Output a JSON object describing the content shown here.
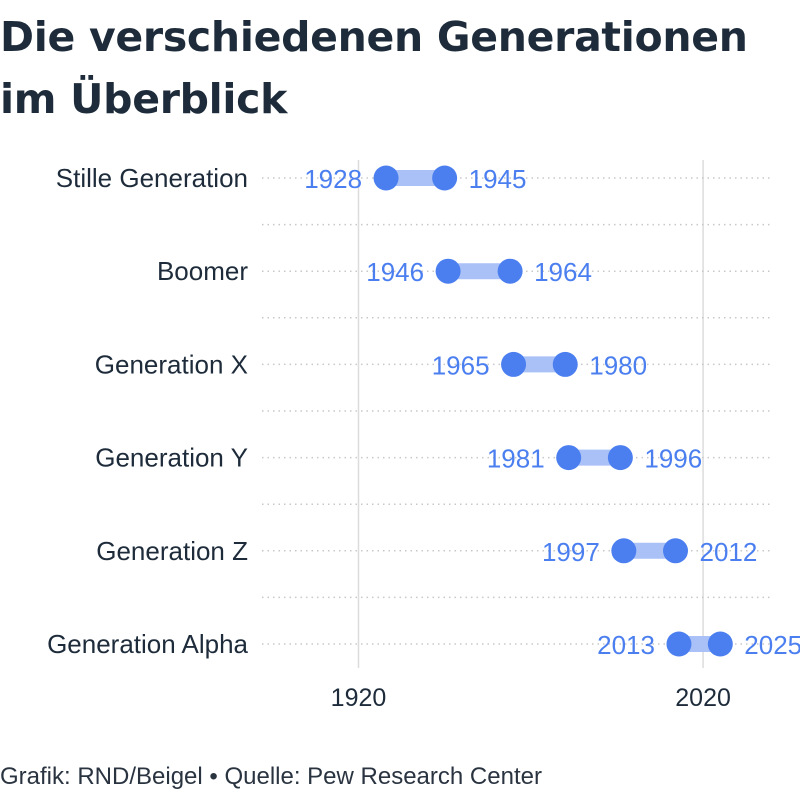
{
  "title": "Die verschiedenen Generationen im Überblick",
  "footer": "Grafik: RND/Beigel • Quelle: Pew Research Center",
  "colors": {
    "accent": "#4b7ff0",
    "bar": "#a9c1f7",
    "text": "#1d2b3a",
    "grid": "#dcdcdc"
  },
  "chart_data": {
    "type": "dumbbell",
    "xlim": [
      1892,
      2040
    ],
    "xticks": [
      1920,
      2020
    ],
    "grid": true,
    "categories": [
      "Stille Generation",
      "Boomer",
      "Generation X",
      "Generation Y",
      "Generation Z",
      "Generation Alpha"
    ],
    "series": [
      {
        "values": [
          [
            1928,
            1945
          ],
          [
            1946,
            1964
          ],
          [
            1965,
            1980
          ],
          [
            1981,
            1996
          ],
          [
            1997,
            2012
          ],
          [
            2013,
            2025
          ]
        ]
      }
    ]
  }
}
